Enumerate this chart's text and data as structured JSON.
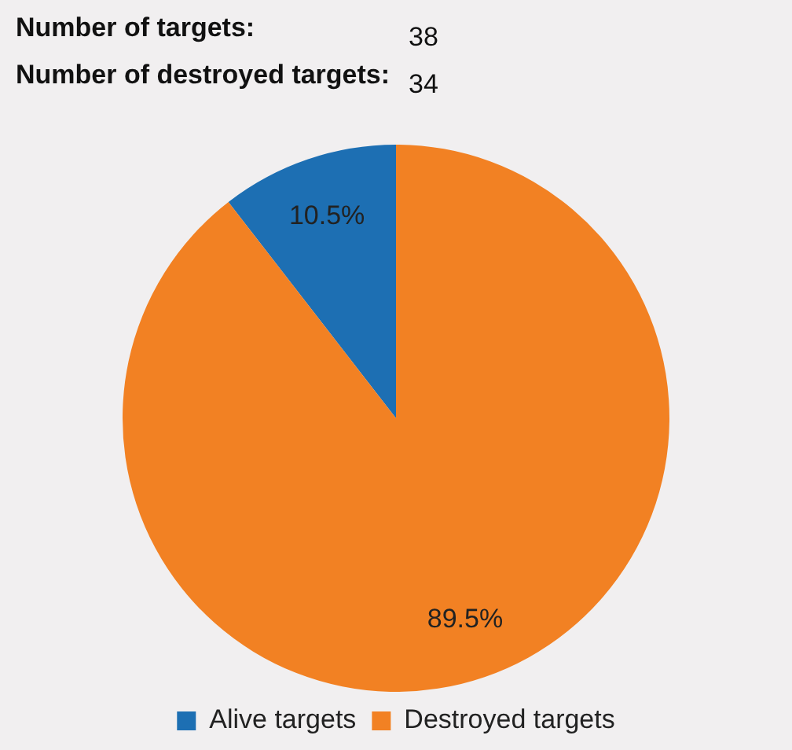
{
  "chart_data": {
    "type": "pie",
    "annotations": [
      "Number of targets:",
      "38",
      "Number of destroyed targets:",
      "34"
    ],
    "categories": [
      "Alive targets",
      "Destroyed targets"
    ],
    "values": [
      10.5,
      89.5
    ],
    "colors": [
      "#1d6fb3",
      "#f28123"
    ],
    "value_labels": [
      "10.5%",
      "89.5%"
    ],
    "legend": "bottom"
  }
}
